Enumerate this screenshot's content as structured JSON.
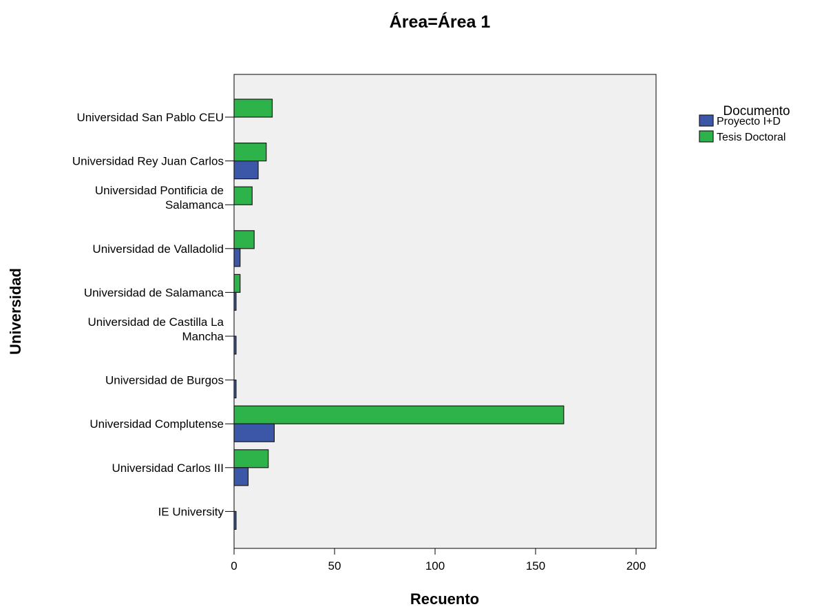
{
  "chart_data": {
    "type": "bar",
    "orientation": "horizontal",
    "title": "Área=Área 1",
    "xlabel": "Recuento",
    "ylabel": "Universidad",
    "xlim": [
      0,
      210
    ],
    "xticks": [
      0,
      50,
      100,
      150,
      200
    ],
    "grid": false,
    "legend_position": "right",
    "legend_title": "Documento",
    "categories": [
      "Universidad San Pablo CEU",
      "Universidad Rey Juan Carlos",
      "Universidad Pontificia de Salamanca",
      "Universidad de Valladolid",
      "Universidad de Salamanca",
      "Universidad de Castilla La Mancha",
      "Universidad de Burgos",
      "Universidad Complutense",
      "Universidad Carlos III",
      "IE University"
    ],
    "category_lines": [
      [
        "Universidad San Pablo CEU"
      ],
      [
        "Universidad Rey Juan Carlos"
      ],
      [
        "Universidad Pontificia de",
        "Salamanca"
      ],
      [
        "Universidad de Valladolid"
      ],
      [
        "Universidad de Salamanca"
      ],
      [
        "Universidad de Castilla La",
        "Mancha"
      ],
      [
        "Universidad de Burgos"
      ],
      [
        "Universidad Complutense"
      ],
      [
        "Universidad Carlos III"
      ],
      [
        "IE University"
      ]
    ],
    "series": [
      {
        "name": "Tesis Doctoral",
        "color": "#2db34a",
        "values": [
          19,
          16,
          9,
          10,
          3,
          0,
          0,
          164,
          17,
          0
        ]
      },
      {
        "name": "Proyecto I+D",
        "color": "#3c57a8",
        "values": [
          0,
          12,
          0,
          3,
          1,
          1,
          1,
          20,
          7,
          1
        ]
      }
    ],
    "legend_order": [
      "Proyecto I+D",
      "Tesis Doctoral"
    ],
    "plot_background": "#f0f0f0"
  }
}
